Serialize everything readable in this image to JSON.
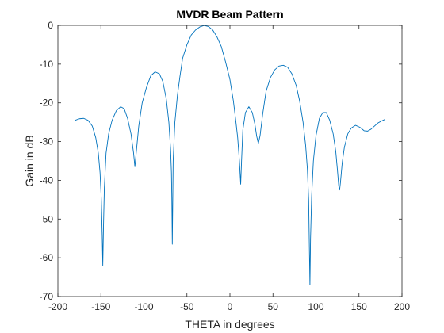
{
  "chart_data": {
    "type": "line",
    "title": "MVDR Beam Pattern",
    "xlabel": "THETA in degrees",
    "ylabel": "Gain in dB",
    "xlim": [
      -200,
      200
    ],
    "ylim": [
      -70,
      0
    ],
    "xticks": [
      -200,
      -150,
      -100,
      -50,
      0,
      50,
      100,
      150,
      200
    ],
    "yticks": [
      0,
      -10,
      -20,
      -30,
      -40,
      -50,
      -60,
      -70
    ],
    "grid": false,
    "line_color": "#0072BD",
    "series": [
      {
        "points": [
          [
            -180,
            -24.5
          ],
          [
            -175,
            -24.1
          ],
          [
            -170,
            -24.0
          ],
          [
            -165,
            -24.5
          ],
          [
            -160,
            -26.0
          ],
          [
            -156,
            -29.0
          ],
          [
            -153,
            -33.0
          ],
          [
            -151,
            -38.0
          ],
          [
            -149.5,
            -45.0
          ],
          [
            -148.5,
            -54.0
          ],
          [
            -147.8,
            -62.0
          ],
          [
            -147,
            -52.0
          ],
          [
            -146,
            -42.0
          ],
          [
            -144,
            -33.0
          ],
          [
            -141,
            -28.0
          ],
          [
            -137,
            -24.5
          ],
          [
            -132,
            -22.0
          ],
          [
            -127,
            -21.0
          ],
          [
            -123,
            -21.5
          ],
          [
            -119,
            -24.0
          ],
          [
            -115,
            -28.0
          ],
          [
            -112,
            -33.0
          ],
          [
            -110.5,
            -36.5
          ],
          [
            -109,
            -33.0
          ],
          [
            -106,
            -26.0
          ],
          [
            -102,
            -20.0
          ],
          [
            -97,
            -16.0
          ],
          [
            -92,
            -13.0
          ],
          [
            -87,
            -12.0
          ],
          [
            -82,
            -12.5
          ],
          [
            -78,
            -14.5
          ],
          [
            -74,
            -19.0
          ],
          [
            -71,
            -25.0
          ],
          [
            -69,
            -32.0
          ],
          [
            -68,
            -38.0
          ],
          [
            -67.5,
            -45.0
          ],
          [
            -67,
            -56.5
          ],
          [
            -66.5,
            -46.0
          ],
          [
            -66,
            -35.0
          ],
          [
            -64,
            -25.0
          ],
          [
            -61,
            -18.0
          ],
          [
            -58,
            -13.0
          ],
          [
            -55,
            -8.5
          ],
          [
            -50,
            -5.0
          ],
          [
            -45,
            -2.5
          ],
          [
            -40,
            -1.2
          ],
          [
            -35,
            -0.4
          ],
          [
            -30,
            -0.05
          ],
          [
            -25,
            -0.3
          ],
          [
            -20,
            -1.2
          ],
          [
            -15,
            -3.0
          ],
          [
            -10,
            -5.5
          ],
          [
            -5,
            -9.5
          ],
          [
            0,
            -14.0
          ],
          [
            4,
            -19.5
          ],
          [
            7,
            -25.0
          ],
          [
            9,
            -29.0
          ],
          [
            11,
            -35.0
          ],
          [
            12.5,
            -41.0
          ],
          [
            13.5,
            -35.0
          ],
          [
            15,
            -27.0
          ],
          [
            18,
            -22.5
          ],
          [
            22,
            -21.0
          ],
          [
            26,
            -22.5
          ],
          [
            29,
            -25.5
          ],
          [
            31,
            -28.5
          ],
          [
            33,
            -30.5
          ],
          [
            35,
            -28.5
          ],
          [
            38,
            -23.0
          ],
          [
            42,
            -17.0
          ],
          [
            47,
            -13.5
          ],
          [
            52,
            -11.5
          ],
          [
            57,
            -10.5
          ],
          [
            62,
            -10.3
          ],
          [
            67,
            -10.8
          ],
          [
            72,
            -12.5
          ],
          [
            77,
            -15.5
          ],
          [
            81,
            -19.5
          ],
          [
            85,
            -25.0
          ],
          [
            88,
            -31.0
          ],
          [
            90,
            -37.0
          ],
          [
            91.5,
            -45.0
          ],
          [
            92.3,
            -57.0
          ],
          [
            93,
            -67.0
          ],
          [
            93.7,
            -55.0
          ],
          [
            95,
            -44.0
          ],
          [
            97,
            -35.0
          ],
          [
            100,
            -28.5
          ],
          [
            104,
            -24.0
          ],
          [
            108,
            -22.5
          ],
          [
            112,
            -22.5
          ],
          [
            116,
            -24.5
          ],
          [
            120,
            -28.0
          ],
          [
            123,
            -32.5
          ],
          [
            125,
            -37.5
          ],
          [
            126.5,
            -41.5
          ],
          [
            127.5,
            -42.5
          ],
          [
            128.5,
            -40.5
          ],
          [
            130.5,
            -35.5
          ],
          [
            133,
            -31.5
          ],
          [
            137,
            -28.0
          ],
          [
            141,
            -26.5
          ],
          [
            146,
            -25.8
          ],
          [
            151,
            -26.3
          ],
          [
            156,
            -27.2
          ],
          [
            160,
            -27.3
          ],
          [
            164,
            -26.8
          ],
          [
            168,
            -26.0
          ],
          [
            172,
            -25.2
          ],
          [
            176,
            -24.7
          ],
          [
            180,
            -24.3
          ]
        ]
      }
    ]
  }
}
